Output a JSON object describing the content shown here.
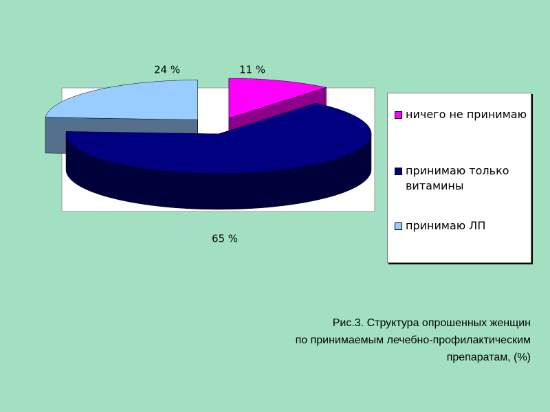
{
  "chart_data": {
    "type": "pie3d",
    "categories": [
      "ничего не принимаю",
      "принимаю только витамины",
      "принимаю ЛП"
    ],
    "values": [
      11,
      65,
      24
    ],
    "value_labels": [
      "11 %",
      "65 %",
      "24 %"
    ],
    "colors": [
      "#ff00ff",
      "#000080",
      "#99ccff"
    ],
    "legend": "right"
  },
  "caption": [
    "Рис.3. Структура опрошенных женщин",
    "по принимаемым лечебно-профилактическим",
    "препаратам, (%)"
  ]
}
